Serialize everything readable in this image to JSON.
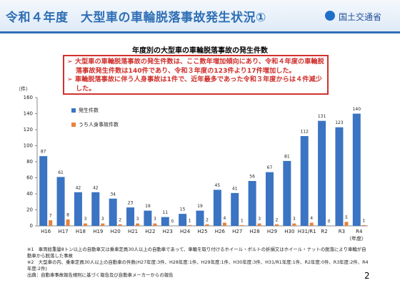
{
  "header": {
    "title": "令和４年度　大型車の車輪脱落事故発生状況①",
    "logo": "国土交通省"
  },
  "chart_data": {
    "type": "bar",
    "title": "年度別の大型車の車輪脱落事故の発生件数",
    "summary": [
      "大型車の車輪脱落事故の発生件数は、ここ数年増加傾向にあり、令和４年度の車輪脱落事故発生件数は140件であり、令和３年度の123件より17件増加した。",
      "車輪脱落事故に伴う人身事故は1件で、近年最多であった令和３年度からは４件減少した。"
    ],
    "y_label": "（件）",
    "x_label": "（年度）",
    "categories": [
      "H16",
      "H17",
      "H18",
      "H19",
      "H20",
      "H21",
      "H22",
      "H23",
      "H24",
      "H25",
      "H26",
      "H27",
      "H28",
      "H29",
      "H30",
      "H31/R1",
      "R2",
      "R3",
      "R4"
    ],
    "series": [
      {
        "name": "発生件数",
        "color": "#3a74c2",
        "values": [
          87,
          61,
          42,
          42,
          34,
          23,
          19,
          11,
          15,
          19,
          45,
          41,
          56,
          67,
          81,
          112,
          131,
          123,
          140
        ]
      },
      {
        "name": "うち人身事故件数",
        "color": "#e8823a",
        "values": [
          7,
          8,
          3,
          3,
          2,
          3,
          3,
          0,
          1,
          2,
          4,
          1,
          3,
          2,
          3,
          4,
          0,
          5,
          1
        ]
      }
    ],
    "ylim": [
      0,
      160
    ],
    "yticks": [
      0,
      20,
      40,
      60,
      80,
      100,
      120,
      140,
      160
    ],
    "grid": false,
    "legend": "upper-left"
  },
  "footnotes": [
    "※1　車両総重量8トン以上の自動車又は乗車定員30人以上の自動車であって、車輪を取り付けるホイール・ボルトの折損又はホイール・ナットの脱落により車輪が自動車から脱落した事故",
    "※2　大型車の内、乗車定員30人以上の自動車の件数(H27年度:3件、H28年度:1件、H29年度:1件、H30年度:3件、H31/R1年度:1件、R2年度:0件、R3年度:2件、R4年度:2件)",
    "出典：自動車事故報告規則に基づく報告及び自動車メーカーからの報告"
  ],
  "page_number": "2"
}
